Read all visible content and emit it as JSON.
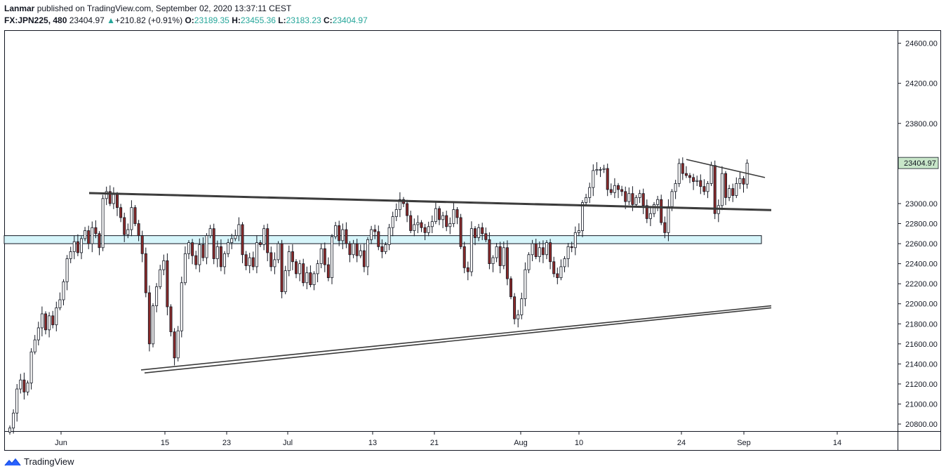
{
  "header": {
    "author": "Lanmar",
    "published_text": "published on TradingView.com, September 02, 2020 13:37:11 CEST",
    "symbol": "FX:JPN225, 480",
    "last": "23404.97",
    "change_arrow": "▲",
    "change": "+210.82 (+0.91%)",
    "o_label": "O:",
    "o_value": "23189.35",
    "h_label": "H:",
    "h_value": "23455.36",
    "l_label": "L:",
    "l_value": "23183.23",
    "c_label": "C:",
    "c_value": "23404.97"
  },
  "footer": {
    "brand": "TradingView"
  },
  "colors": {
    "up": "#26a69a",
    "down": "#8b2a2a",
    "candle_up_fill": "#ffffff",
    "candle_border": "#131722",
    "zone_fill": "#d6f5fa",
    "trendline": "#3a3a3a",
    "axis_text": "#131722",
    "price_tag_bg": "#c8e6c9"
  },
  "chart_data": {
    "type": "candlestick",
    "symbol": "FX:JPN225",
    "interval": "480",
    "x_tick_labels": [
      "Jun",
      "15",
      "23",
      "Jul",
      "13",
      "21",
      "Aug",
      "10",
      "24",
      "Sep",
      "14"
    ],
    "y_tick_labels": [
      "24600.00",
      "24200.00",
      "23800.00",
      "23000.00",
      "22800.00",
      "22600.00",
      "22400.00",
      "22200.00",
      "22000.00",
      "21800.00",
      "21600.00",
      "21400.00",
      "21200.00",
      "21000.00",
      "20800.00"
    ],
    "ylim": [
      20730,
      24730
    ],
    "last_price_label": "23404.97",
    "closes": [
      20760,
      20910,
      21150,
      21240,
      21120,
      21210,
      21520,
      21640,
      21760,
      21900,
      21740,
      21880,
      21790,
      21960,
      22040,
      22220,
      22450,
      22520,
      22620,
      22510,
      22650,
      22730,
      22600,
      22760,
      22700,
      22560,
      23050,
      23120,
      23000,
      23090,
      22960,
      22860,
      22690,
      22740,
      22960,
      22800,
      22680,
      22500,
      22110,
      21600,
      21980,
      22170,
      22340,
      22430,
      21970,
      21720,
      21460,
      21730,
      22210,
      22500,
      22610,
      22480,
      22390,
      22590,
      22460,
      22680,
      22750,
      22450,
      22570,
      22370,
      22500,
      22610,
      22650,
      22680,
      22790,
      22490,
      22380,
      22460,
      22370,
      22610,
      22590,
      22750,
      22510,
      22370,
      22440,
      22600,
      22120,
      22330,
      22520,
      22420,
      22300,
      22400,
      22210,
      22310,
      22190,
      22300,
      22400,
      22550,
      22390,
      22260,
      22670,
      22780,
      22630,
      22740,
      22600,
      22490,
      22600,
      22480,
      22530,
      22370,
      22640,
      22740,
      22720,
      22570,
      22520,
      22590,
      22760,
      22870,
      22940,
      23040,
      23000,
      22880,
      22730,
      22790,
      22810,
      22760,
      22710,
      22770,
      22820,
      22950,
      22840,
      22880,
      22770,
      22800,
      22940,
      22860,
      22570,
      22360,
      22320,
      22750,
      22660,
      22760,
      22700,
      22640,
      22400,
      22460,
      22570,
      22380,
      22560,
      22250,
      22070,
      21850,
      21890,
      22050,
      22340,
      22490,
      22600,
      22470,
      22560,
      22490,
      22610,
      22420,
      22300,
      22260,
      22370,
      22450,
      22570,
      22560,
      22710,
      22730,
      23010,
      23060,
      23160,
      23330,
      23340,
      23340,
      23350,
      23140,
      23110,
      23180,
      23140,
      23120,
      23020,
      23100,
      22990,
      23060,
      23100,
      22980,
      22850,
      22900,
      22990,
      23040,
      22810,
      22710,
      22970,
      23120,
      23200,
      23400,
      23300,
      23280,
      23260,
      23220,
      23230,
      23170,
      23120,
      23200,
      23380,
      22900,
      22980,
      23300,
      23060,
      23150,
      23080,
      23200,
      23250,
      23194,
      23404
    ]
  }
}
